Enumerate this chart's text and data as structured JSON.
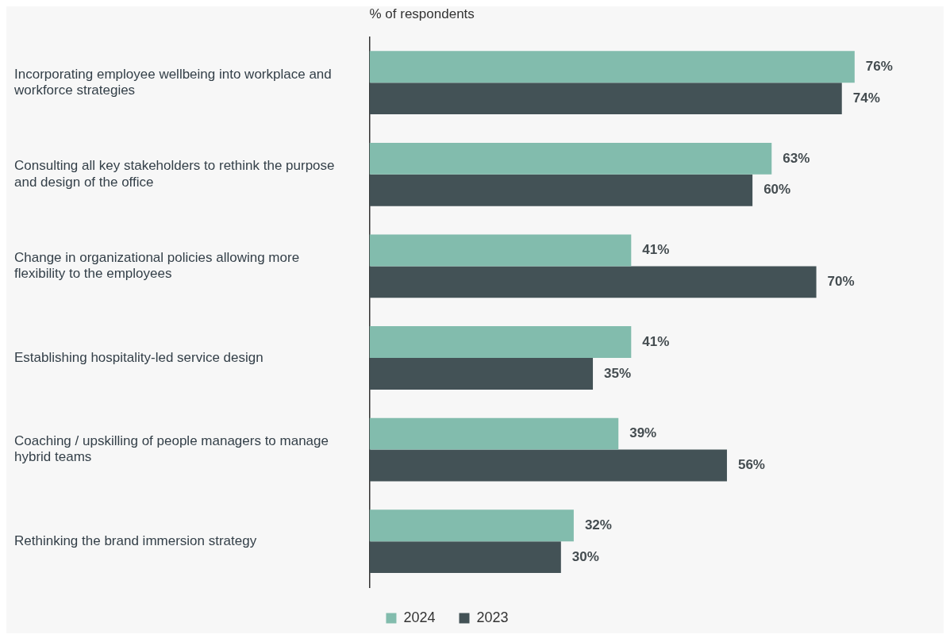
{
  "chart_data": {
    "type": "bar",
    "orientation": "horizontal",
    "xlabel": "% of respondents",
    "categories": [
      "Incorporating employee wellbeing into workplace and workforce strategies",
      "Consulting all key stakeholders to rethink the purpose and design of the office",
      "Change in organizational policies allowing more flexibility to the employees",
      "Establishing hospitality-led service design",
      "Coaching / upskilling of people managers to manage hybrid teams",
      "Rethinking the brand immersion strategy"
    ],
    "series": [
      {
        "name": "2024",
        "color": "#82bcad",
        "values": [
          76,
          63,
          41,
          41,
          39,
          32
        ],
        "value_labels": [
          "76%",
          "63%",
          "41%",
          "41%",
          "39%",
          "32%"
        ]
      },
      {
        "name": "2023",
        "color": "#435256",
        "values": [
          74,
          60,
          70,
          35,
          56,
          30
        ],
        "value_labels": [
          "74%",
          "60%",
          "70%",
          "35%",
          "56%",
          "30%"
        ]
      }
    ],
    "relative": false,
    "legend": "bottom",
    "grid": false
  }
}
